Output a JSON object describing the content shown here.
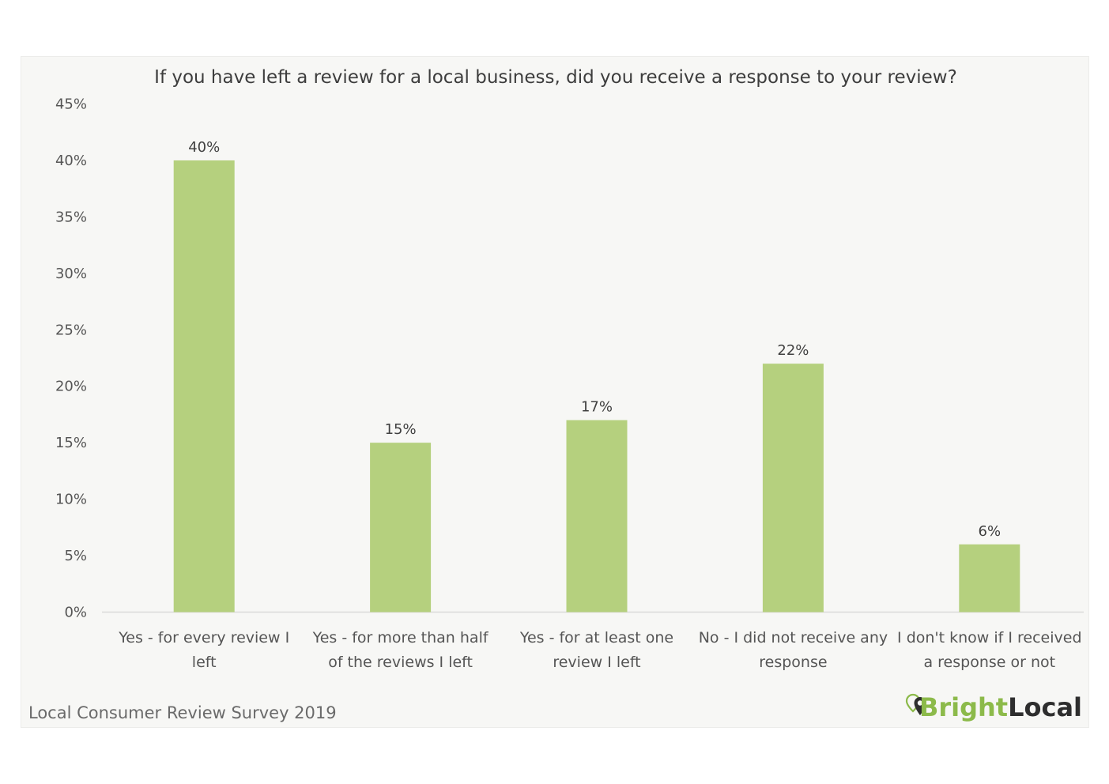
{
  "chart_data": {
    "type": "bar",
    "title": "If you have left a review for a local business, did you receive a response to your review?",
    "categories": [
      [
        "Yes - for every review I",
        "left"
      ],
      [
        "Yes - for more than half",
        "of the reviews I left"
      ],
      [
        "Yes - for at least one",
        "review I left"
      ],
      [
        "No - I did not receive any",
        "response"
      ],
      [
        "I don't know if I received",
        "a response or not"
      ]
    ],
    "values": [
      40,
      15,
      17,
      22,
      6
    ],
    "value_labels": [
      "40%",
      "15%",
      "17%",
      "22%",
      "6%"
    ],
    "yticks": [
      0,
      5,
      10,
      15,
      20,
      25,
      30,
      35,
      40,
      45
    ],
    "ytick_labels": [
      "0%",
      "5%",
      "10%",
      "15%",
      "20%",
      "25%",
      "30%",
      "35%",
      "40%",
      "45%"
    ],
    "ylim": [
      0,
      45
    ],
    "xlabel": "",
    "ylabel": "",
    "grid": false,
    "colors": {
      "bar": "#b5d07e",
      "axis": "#dadada"
    }
  },
  "footer": {
    "source": "Local Consumer Review Survey 2019"
  },
  "brand": {
    "part1": "Bright",
    "part2": "Local",
    "icon": "location-pin-icon"
  }
}
